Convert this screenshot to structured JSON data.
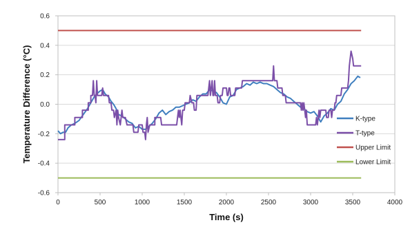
{
  "chart_data": {
    "type": "line",
    "title": "",
    "xlabel": "Time (s)",
    "ylabel": "Temperature Difference (°C)",
    "xlim": [
      0,
      4000
    ],
    "ylim": [
      -0.6,
      0.6
    ],
    "x_ticks": [
      0,
      500,
      1000,
      1500,
      2000,
      2500,
      3000,
      3500,
      4000
    ],
    "y_ticks": [
      0.6,
      0.4,
      0.2,
      0.0,
      -0.2,
      -0.4,
      -0.6
    ],
    "y_tick_labels": [
      "0.6",
      "0.4",
      "0.2",
      "0.0",
      "-0.2",
      "-0.4",
      "-0.6"
    ],
    "grid": "horizontal",
    "legend_position": "right",
    "series": [
      {
        "name": "K-type",
        "color": "#3f7fbf",
        "points": [
          [
            0,
            -0.18
          ],
          [
            30,
            -0.2
          ],
          [
            60,
            -0.19
          ],
          [
            90,
            -0.19
          ],
          [
            120,
            -0.16
          ],
          [
            160,
            -0.14
          ],
          [
            200,
            -0.13
          ],
          [
            250,
            -0.11
          ],
          [
            300,
            -0.07
          ],
          [
            350,
            -0.03
          ],
          [
            400,
            0.02
          ],
          [
            430,
            0.05
          ],
          [
            460,
            0.07
          ],
          [
            500,
            0.09
          ],
          [
            530,
            0.1
          ],
          [
            560,
            0.07
          ],
          [
            600,
            0.05
          ],
          [
            630,
            0.02
          ],
          [
            660,
            0.0
          ],
          [
            690,
            -0.03
          ],
          [
            720,
            -0.07
          ],
          [
            760,
            -0.08
          ],
          [
            800,
            -0.1
          ],
          [
            840,
            -0.12
          ],
          [
            880,
            -0.13
          ],
          [
            920,
            -0.16
          ],
          [
            960,
            -0.15
          ],
          [
            1000,
            -0.17
          ],
          [
            1040,
            -0.17
          ],
          [
            1080,
            -0.15
          ],
          [
            1120,
            -0.13
          ],
          [
            1160,
            -0.1
          ],
          [
            1200,
            -0.06
          ],
          [
            1240,
            -0.04
          ],
          [
            1280,
            -0.07
          ],
          [
            1320,
            -0.05
          ],
          [
            1360,
            -0.04
          ],
          [
            1400,
            -0.02
          ],
          [
            1440,
            -0.02
          ],
          [
            1480,
            -0.01
          ],
          [
            1520,
            0.0
          ],
          [
            1560,
            0.01
          ],
          [
            1600,
            0.03
          ],
          [
            1640,
            0.02
          ],
          [
            1680,
            0.05
          ],
          [
            1720,
            0.07
          ],
          [
            1760,
            0.07
          ],
          [
            1800,
            0.1
          ],
          [
            1840,
            0.09
          ],
          [
            1880,
            0.08
          ],
          [
            1920,
            0.05
          ],
          [
            1960,
            0.01
          ],
          [
            2000,
            0.0
          ],
          [
            2040,
            0.05
          ],
          [
            2080,
            0.06
          ],
          [
            2120,
            0.1
          ],
          [
            2160,
            0.11
          ],
          [
            2200,
            0.12
          ],
          [
            2240,
            0.14
          ],
          [
            2280,
            0.13
          ],
          [
            2320,
            0.15
          ],
          [
            2360,
            0.14
          ],
          [
            2400,
            0.15
          ],
          [
            2440,
            0.14
          ],
          [
            2480,
            0.14
          ],
          [
            2520,
            0.13
          ],
          [
            2560,
            0.12
          ],
          [
            2600,
            0.1
          ],
          [
            2640,
            0.08
          ],
          [
            2680,
            0.07
          ],
          [
            2720,
            0.05
          ],
          [
            2760,
            0.04
          ],
          [
            2800,
            0.02
          ],
          [
            2840,
            0.0
          ],
          [
            2880,
            -0.02
          ],
          [
            2920,
            -0.03
          ],
          [
            2960,
            -0.05
          ],
          [
            3000,
            -0.06
          ],
          [
            3040,
            -0.05
          ],
          [
            3080,
            -0.08
          ],
          [
            3120,
            -0.12
          ],
          [
            3160,
            -0.08
          ],
          [
            3200,
            -0.06
          ],
          [
            3240,
            -0.03
          ],
          [
            3280,
            -0.04
          ],
          [
            3320,
            0.0
          ],
          [
            3360,
            0.02
          ],
          [
            3400,
            0.07
          ],
          [
            3440,
            0.1
          ],
          [
            3480,
            0.14
          ],
          [
            3520,
            0.16
          ],
          [
            3560,
            0.19
          ],
          [
            3590,
            0.18
          ]
        ]
      },
      {
        "name": "T-type",
        "color": "#7b4fa8",
        "points": [
          [
            0,
            -0.24
          ],
          [
            80,
            -0.24
          ],
          [
            80,
            -0.14
          ],
          [
            200,
            -0.14
          ],
          [
            200,
            -0.09
          ],
          [
            290,
            -0.09
          ],
          [
            290,
            -0.04
          ],
          [
            360,
            -0.04
          ],
          [
            360,
            0.01
          ],
          [
            390,
            0.01
          ],
          [
            390,
            0.06
          ],
          [
            410,
            0.06
          ],
          [
            420,
            0.16
          ],
          [
            430,
            0.06
          ],
          [
            440,
            0.06
          ],
          [
            450,
            0.01
          ],
          [
            460,
            0.16
          ],
          [
            470,
            0.06
          ],
          [
            520,
            0.06
          ],
          [
            530,
            0.11
          ],
          [
            540,
            0.06
          ],
          [
            600,
            0.06
          ],
          [
            610,
            0.01
          ],
          [
            630,
            0.01
          ],
          [
            640,
            -0.04
          ],
          [
            660,
            -0.04
          ],
          [
            670,
            -0.09
          ],
          [
            690,
            -0.04
          ],
          [
            700,
            -0.14
          ],
          [
            710,
            -0.04
          ],
          [
            720,
            -0.09
          ],
          [
            740,
            -0.14
          ],
          [
            760,
            -0.04
          ],
          [
            770,
            -0.09
          ],
          [
            800,
            -0.09
          ],
          [
            820,
            -0.14
          ],
          [
            890,
            -0.14
          ],
          [
            900,
            -0.19
          ],
          [
            950,
            -0.19
          ],
          [
            960,
            -0.14
          ],
          [
            1000,
            -0.14
          ],
          [
            1010,
            -0.19
          ],
          [
            1030,
            -0.19
          ],
          [
            1040,
            -0.24
          ],
          [
            1050,
            -0.14
          ],
          [
            1060,
            -0.09
          ],
          [
            1070,
            -0.19
          ],
          [
            1090,
            -0.14
          ],
          [
            1150,
            -0.14
          ],
          [
            1150,
            -0.09
          ],
          [
            1220,
            -0.09
          ],
          [
            1230,
            -0.14
          ],
          [
            1410,
            -0.14
          ],
          [
            1420,
            -0.09
          ],
          [
            1430,
            -0.04
          ],
          [
            1440,
            -0.09
          ],
          [
            1450,
            -0.04
          ],
          [
            1460,
            -0.09
          ],
          [
            1470,
            -0.14
          ],
          [
            1480,
            -0.04
          ],
          [
            1500,
            -0.04
          ],
          [
            1510,
            0.01
          ],
          [
            1560,
            0.01
          ],
          [
            1570,
            0.06
          ],
          [
            1590,
            0.01
          ],
          [
            1610,
            0.01
          ],
          [
            1620,
            -0.04
          ],
          [
            1640,
            -0.04
          ],
          [
            1650,
            0.06
          ],
          [
            1780,
            0.06
          ],
          [
            1790,
            0.11
          ],
          [
            1800,
            0.16
          ],
          [
            1810,
            0.06
          ],
          [
            1830,
            0.16
          ],
          [
            1840,
            0.06
          ],
          [
            1850,
            0.06
          ],
          [
            1860,
            0.16
          ],
          [
            1870,
            0.06
          ],
          [
            1890,
            0.06
          ],
          [
            1900,
            0.01
          ],
          [
            1920,
            0.01
          ],
          [
            1930,
            0.06
          ],
          [
            1950,
            0.06
          ],
          [
            1960,
            0.11
          ],
          [
            2000,
            0.11
          ],
          [
            2010,
            0.06
          ],
          [
            2020,
            0.06
          ],
          [
            2030,
            0.11
          ],
          [
            2040,
            0.11
          ],
          [
            2050,
            0.06
          ],
          [
            2100,
            0.06
          ],
          [
            2110,
            0.11
          ],
          [
            2180,
            0.11
          ],
          [
            2190,
            0.16
          ],
          [
            2550,
            0.16
          ],
          [
            2560,
            0.26
          ],
          [
            2570,
            0.16
          ],
          [
            2600,
            0.16
          ],
          [
            2610,
            0.11
          ],
          [
            2660,
            0.11
          ],
          [
            2670,
            0.06
          ],
          [
            2700,
            0.06
          ],
          [
            2710,
            0.01
          ],
          [
            2880,
            0.01
          ],
          [
            2890,
            -0.04
          ],
          [
            2900,
            0.01
          ],
          [
            2910,
            -0.04
          ],
          [
            2920,
            0.01
          ],
          [
            2930,
            -0.04
          ],
          [
            2940,
            -0.09
          ],
          [
            2950,
            -0.04
          ],
          [
            2960,
            -0.14
          ],
          [
            3060,
            -0.14
          ],
          [
            3070,
            -0.09
          ],
          [
            3080,
            -0.14
          ],
          [
            3090,
            -0.09
          ],
          [
            3100,
            -0.04
          ],
          [
            3110,
            -0.09
          ],
          [
            3120,
            -0.04
          ],
          [
            3180,
            -0.04
          ],
          [
            3190,
            -0.09
          ],
          [
            3210,
            -0.09
          ],
          [
            3220,
            -0.04
          ],
          [
            3240,
            -0.04
          ],
          [
            3250,
            -0.09
          ],
          [
            3260,
            -0.04
          ],
          [
            3280,
            -0.04
          ],
          [
            3290,
            0.01
          ],
          [
            3300,
            0.01
          ],
          [
            3310,
            0.06
          ],
          [
            3360,
            0.06
          ],
          [
            3370,
            0.11
          ],
          [
            3440,
            0.11
          ],
          [
            3450,
            0.16
          ],
          [
            3460,
            0.26
          ],
          [
            3480,
            0.36
          ],
          [
            3500,
            0.31
          ],
          [
            3510,
            0.26
          ],
          [
            3600,
            0.26
          ]
        ]
      },
      {
        "name": "Upper Limit",
        "color": "#c0504d",
        "points": [
          [
            0,
            0.5
          ],
          [
            3600,
            0.5
          ]
        ]
      },
      {
        "name": "Lower Limit",
        "color": "#9bbb59",
        "points": [
          [
            0,
            -0.5
          ],
          [
            3600,
            -0.5
          ]
        ]
      }
    ]
  }
}
